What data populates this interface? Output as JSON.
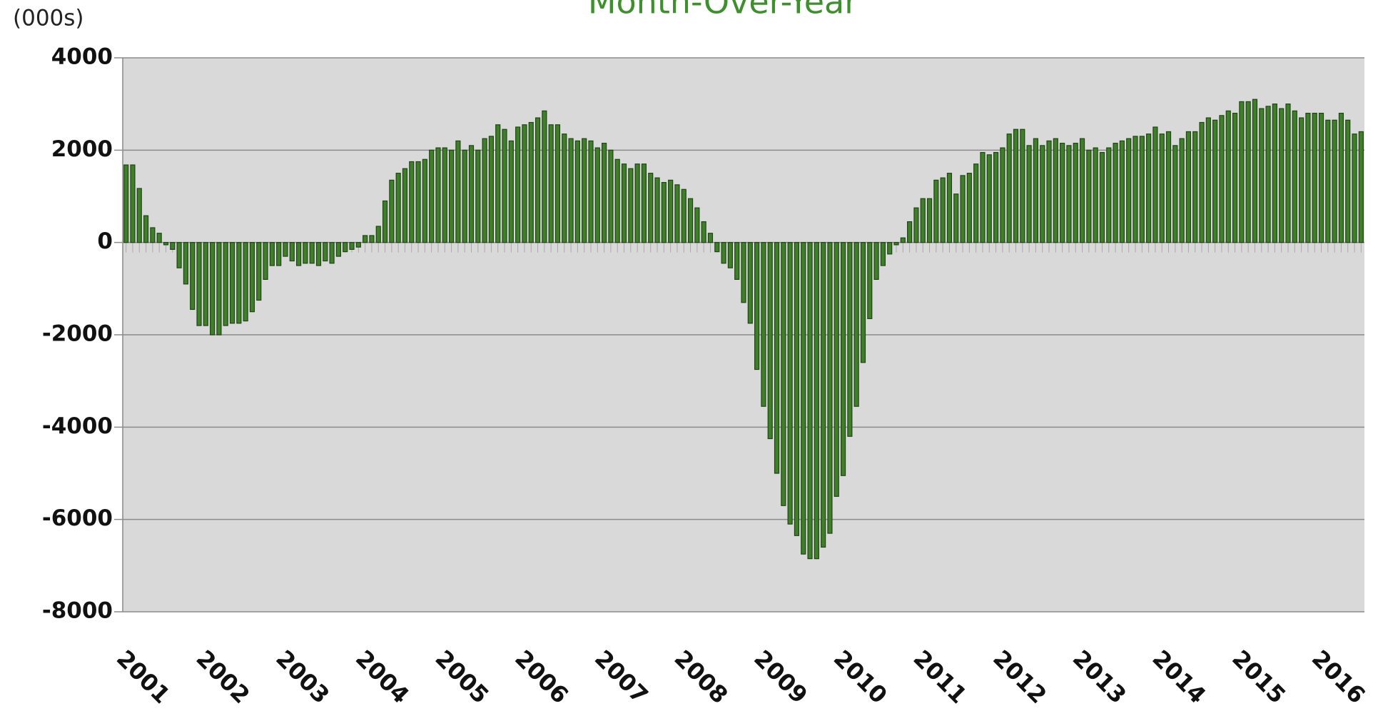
{
  "chart_data": {
    "type": "bar",
    "title": "Month-Over-Year",
    "y_label": "(000s)",
    "color": "#3f7f2a",
    "categories": [
      "2001",
      null,
      null,
      null,
      null,
      null,
      null,
      null,
      null,
      null,
      null,
      null,
      "2002",
      null,
      null,
      null,
      null,
      null,
      null,
      null,
      null,
      null,
      null,
      null,
      "2003",
      null,
      null,
      null,
      null,
      null,
      null,
      null,
      null,
      null,
      null,
      null,
      "2004",
      null,
      null,
      null,
      null,
      null,
      null,
      null,
      null,
      null,
      null,
      null,
      "2005",
      null,
      null,
      null,
      null,
      null,
      null,
      null,
      null,
      null,
      null,
      null,
      "2006",
      null,
      null,
      null,
      null,
      null,
      null,
      null,
      null,
      null,
      null,
      null,
      "2007",
      null,
      null,
      null,
      null,
      null,
      null,
      null,
      null,
      null,
      null,
      null,
      "2008",
      null,
      null,
      null,
      null,
      null,
      null,
      null,
      null,
      null,
      null,
      null,
      "2009",
      null,
      null,
      null,
      null,
      null,
      null,
      null,
      null,
      null,
      null,
      null,
      "2010",
      null,
      null,
      null,
      null,
      null,
      null,
      null,
      null,
      null,
      null,
      null,
      "2011",
      null,
      null,
      null,
      null,
      null,
      null,
      null,
      null,
      null,
      null,
      null,
      "2012",
      null,
      null,
      null,
      null,
      null,
      null,
      null,
      null,
      null,
      null,
      null,
      "2013",
      null,
      null,
      null,
      null,
      null,
      null,
      null,
      null,
      null,
      null,
      null,
      "2014",
      null,
      null,
      null,
      null,
      null,
      null,
      null,
      null,
      null,
      null,
      null,
      "2015",
      null,
      null,
      null,
      null,
      null,
      null,
      null,
      null,
      null,
      null,
      null,
      "2016",
      null,
      null,
      null,
      null,
      null,
      null
    ],
    "values": [
      1680,
      1680,
      1170,
      580,
      320,
      200,
      -50,
      -150,
      -550,
      -900,
      -1450,
      -1800,
      -1800,
      -2000,
      -2000,
      -1800,
      -1750,
      -1750,
      -1700,
      -1500,
      -1250,
      -800,
      -500,
      -500,
      -300,
      -400,
      -500,
      -450,
      -450,
      -500,
      -400,
      -450,
      -300,
      -200,
      -150,
      -100,
      150,
      150,
      350,
      900,
      1350,
      1500,
      1600,
      1750,
      1750,
      1800,
      2000,
      2050,
      2050,
      2000,
      2200,
      2000,
      2100,
      2000,
      2250,
      2300,
      2550,
      2450,
      2200,
      2500,
      2550,
      2600,
      2700,
      2850,
      2550,
      2550,
      2350,
      2250,
      2200,
      2250,
      2200,
      2050,
      2150,
      2000,
      1800,
      1700,
      1600,
      1700,
      1700,
      1500,
      1400,
      1300,
      1350,
      1250,
      1150,
      950,
      750,
      450,
      200,
      -200,
      -450,
      -550,
      -800,
      -1300,
      -1750,
      -2750,
      -3550,
      -4250,
      -5000,
      -5700,
      -6100,
      -6350,
      -6750,
      -6850,
      -6850,
      -6600,
      -6300,
      -5500,
      -5050,
      -4200,
      -3550,
      -2600,
      -1650,
      -800,
      -500,
      -250,
      -50,
      100,
      450,
      750,
      950,
      950,
      1350,
      1400,
      1500,
      1050,
      1450,
      1500,
      1700,
      1950,
      1900,
      1950,
      2050,
      2350,
      2450,
      2450,
      2100,
      2250,
      2100,
      2200,
      2250,
      2150,
      2100,
      2150,
      2250,
      2000,
      2050,
      1950,
      2050,
      2150,
      2200,
      2250,
      2300,
      2300,
      2350,
      2500,
      2350,
      2400,
      2100,
      2250,
      2400,
      2400,
      2600,
      2700,
      2650,
      2750,
      2850,
      2800,
      3050,
      3050,
      3100,
      2900,
      2950,
      3000,
      2900,
      3000,
      2850,
      2700,
      2800,
      2800,
      2800,
      2650,
      2650,
      2800,
      2650,
      2350,
      2400
    ],
    "ylim": [
      -8000,
      4000
    ],
    "yticks": [
      -8000,
      -6000,
      -4000,
      -2000,
      0,
      2000,
      4000
    ],
    "grid": true
  }
}
